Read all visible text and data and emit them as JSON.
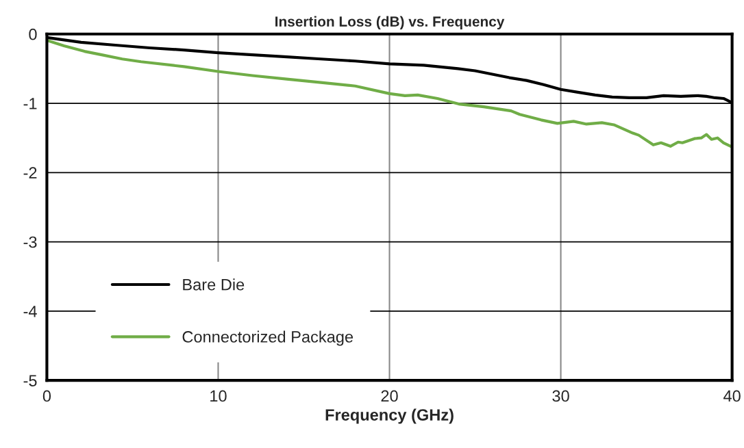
{
  "chart_data": {
    "type": "line",
    "title": "Insertion Loss (dB) vs. Frequency",
    "xlabel": "Frequency (GHz)",
    "xlim": [
      0,
      40
    ],
    "xticks": [
      0,
      10,
      20,
      30,
      40
    ],
    "ylim": [
      -5,
      0
    ],
    "yticks": [
      -5,
      -4,
      -3,
      -2,
      -1,
      0
    ],
    "grid": true,
    "legend": "bottom left",
    "marker": "none",
    "line_style": "solid",
    "series": [
      {
        "name": "Bare Die",
        "color": "#000000",
        "x": [
          0,
          2,
          4,
          6,
          8,
          10,
          12,
          14,
          16,
          18,
          20,
          22,
          24,
          25,
          26,
          27,
          28,
          29,
          30,
          31,
          32,
          33,
          34,
          35,
          36,
          37,
          38,
          38.5,
          39,
          39.5,
          40
        ],
        "values": [
          -0.05,
          -0.12,
          -0.16,
          -0.2,
          -0.23,
          -0.27,
          -0.3,
          -0.33,
          -0.36,
          -0.39,
          -0.43,
          -0.45,
          -0.5,
          -0.53,
          -0.58,
          -0.63,
          -0.67,
          -0.73,
          -0.8,
          -0.84,
          -0.88,
          -0.91,
          -0.92,
          -0.92,
          -0.89,
          -0.9,
          -0.89,
          -0.9,
          -0.92,
          -0.93,
          -0.99
        ]
      },
      {
        "name": "Connectorized Package",
        "color": "#70ad47",
        "x": [
          0,
          1,
          2.2,
          3.2,
          4.4,
          5.5,
          8,
          10,
          12,
          14,
          16,
          18,
          20,
          20.9,
          21.65,
          22.8,
          24.05,
          25.5,
          27.1,
          27.6,
          28.85,
          29.8,
          30.75,
          31.5,
          32.4,
          33.1,
          34.2,
          34.55,
          35.4,
          35.85,
          36.4,
          36.85,
          37.1,
          37.8,
          38.2,
          38.5,
          38.8,
          39.15,
          39.5,
          40
        ],
        "values": [
          -0.09,
          -0.17,
          -0.25,
          -0.3,
          -0.36,
          -0.4,
          -0.47,
          -0.54,
          -0.6,
          -0.65,
          -0.7,
          -0.75,
          -0.86,
          -0.89,
          -0.88,
          -0.93,
          -1.01,
          -1.05,
          -1.11,
          -1.16,
          -1.24,
          -1.29,
          -1.26,
          -1.3,
          -1.28,
          -1.31,
          -1.43,
          -1.46,
          -1.6,
          -1.57,
          -1.62,
          -1.56,
          -1.57,
          -1.51,
          -1.5,
          -1.45,
          -1.52,
          -1.5,
          -1.57,
          -1.63
        ]
      }
    ]
  }
}
